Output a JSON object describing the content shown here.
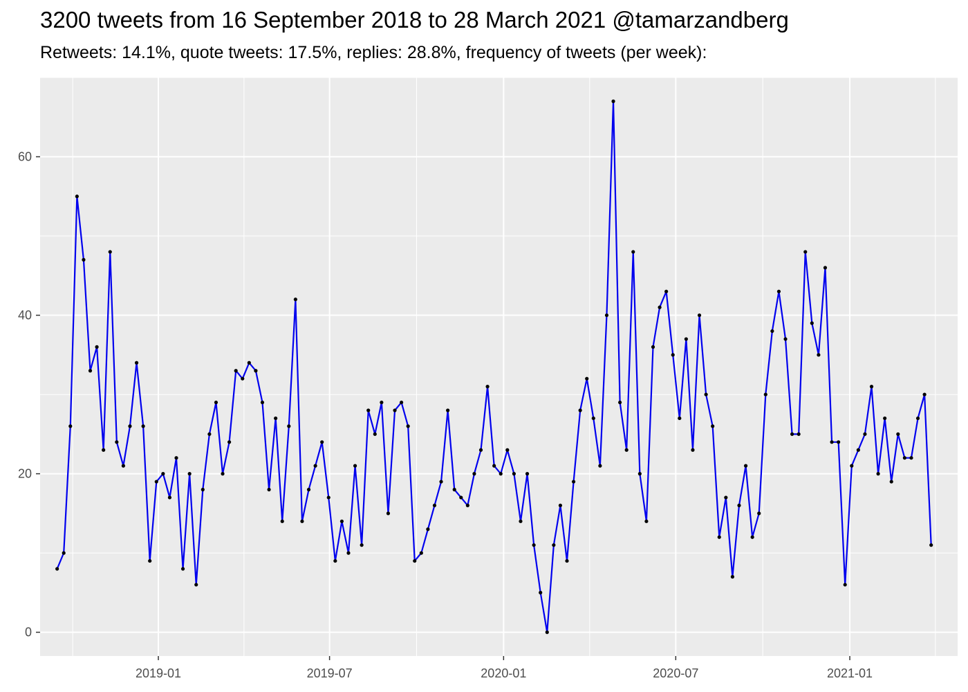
{
  "chart_data": {
    "type": "line",
    "title": "3200 tweets from 16 September 2018 to 28 March 2021 @tamarzandberg",
    "subtitle": "Retweets: 14.1%, quote tweets: 17.5%, replies: 28.8%, frequency of tweets (per week):",
    "xlabel": "",
    "ylabel": "",
    "x_start": "2018-09-16",
    "x_step_days": 7,
    "xlim": [
      "2018-08-29",
      "2021-04-25"
    ],
    "ylim": [
      -3,
      70
    ],
    "x_ticks": [
      {
        "label": "2019-01",
        "date": "2019-01-01"
      },
      {
        "label": "2019-07",
        "date": "2019-07-01"
      },
      {
        "label": "2020-01",
        "date": "2020-01-01"
      },
      {
        "label": "2020-07",
        "date": "2020-07-01"
      },
      {
        "label": "2021-01",
        "date": "2021-01-01"
      }
    ],
    "y_ticks": [
      0,
      20,
      40,
      60
    ],
    "grid": true,
    "line_color": "#0000ee",
    "point_color": "#000000",
    "panel_background": "#ebebeb",
    "series": [
      {
        "values": [
          8,
          10,
          26,
          55,
          47,
          33,
          36,
          23,
          48,
          24,
          21,
          26,
          34,
          26,
          9,
          19,
          20,
          17,
          22,
          8,
          20,
          6,
          18,
          25,
          29,
          20,
          24,
          33,
          32,
          34,
          33,
          29,
          18,
          27,
          14,
          26,
          42,
          14,
          18,
          21,
          24,
          17,
          9,
          14,
          10,
          21,
          11,
          28,
          25,
          29,
          15,
          28,
          29,
          26,
          9,
          10,
          13,
          16,
          19,
          28,
          18,
          17,
          16,
          20,
          23,
          31,
          21,
          20,
          23,
          20,
          14,
          20,
          11,
          5,
          0,
          11,
          16,
          9,
          19,
          28,
          32,
          27,
          21,
          40,
          67,
          29,
          23,
          48,
          20,
          14,
          36,
          41,
          43,
          35,
          27,
          37,
          23,
          40,
          30,
          26,
          12,
          17,
          7,
          16,
          21,
          12,
          15,
          30,
          38,
          43,
          37,
          25,
          25,
          48,
          39,
          35,
          46,
          24,
          24,
          6,
          21,
          23,
          25,
          31,
          20,
          27,
          19,
          25,
          22,
          22,
          27,
          30,
          11
        ]
      }
    ]
  }
}
